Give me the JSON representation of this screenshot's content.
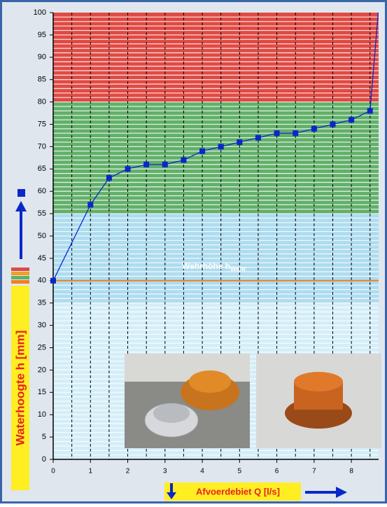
{
  "chart_data": {
    "type": "line",
    "x_label": "Afvoerdebiet Q [l/s]",
    "y_label": "Waterhoogte h [mm]",
    "series": [
      {
        "color": "#0a28c8",
        "x": [
          0,
          1,
          1.5,
          2,
          2.5,
          3,
          3.5,
          4,
          4.5,
          5,
          5.5,
          6,
          6.5,
          7,
          7.5,
          8,
          8.5,
          8.72
        ],
        "values": [
          40,
          57,
          63,
          65,
          66,
          66,
          67,
          69,
          70,
          71,
          72,
          73,
          73,
          74,
          75,
          76,
          78,
          100
        ]
      }
    ],
    "xlim": [
      0,
      8.73
    ],
    "ylim": [
      0,
      100
    ],
    "xticks": [
      0,
      1,
      2,
      3,
      4,
      5,
      6,
      7,
      8
    ],
    "yticks": [
      0,
      5,
      10,
      15,
      20,
      25,
      30,
      35,
      40,
      45,
      50,
      55,
      60,
      65,
      70,
      75,
      80,
      85,
      90,
      95,
      100
    ],
    "bands": [
      {
        "from": 80,
        "to": 100,
        "color": "#e04a44"
      },
      {
        "from": 55,
        "to": 80,
        "color": "#62b06a"
      },
      {
        "from": 35,
        "to": 55,
        "color": "#aedcf0"
      },
      {
        "from": 0,
        "to": 35,
        "color": "#d4eef8"
      }
    ],
    "y_grid_step": 1,
    "x_grid_step": 0.5,
    "annotation": {
      "text": "Wehrhöhe h",
      "subscript": "Wehr",
      "value": 40,
      "color": "#f08020"
    }
  }
}
